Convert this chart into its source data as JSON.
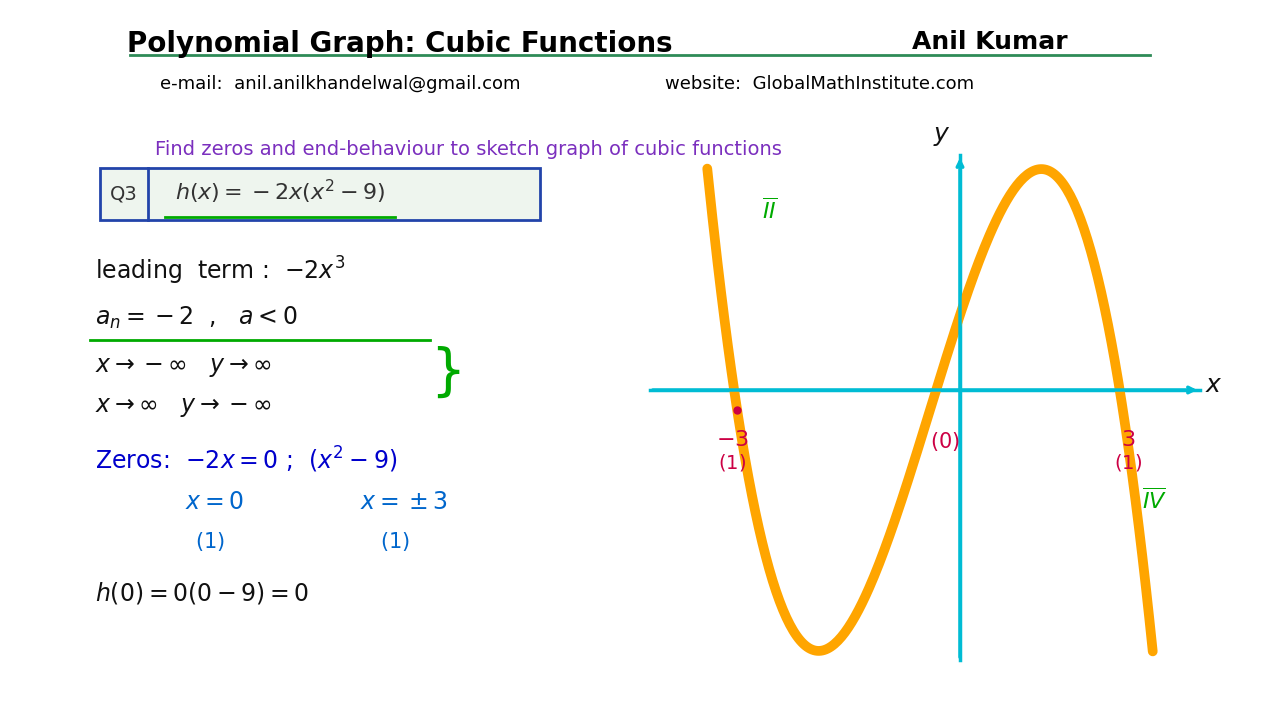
{
  "title": "Polynomial Graph: Cubic Functions",
  "author": "Anil Kumar",
  "email": "e-mail:  anil.anilkhandelwal@gmail.com",
  "website": "website:  GlobalMathInstitute.com",
  "subtitle": "Find zeros and end-behaviour to sketch graph of cubic functions",
  "bg_color": "#f0f0f0",
  "header_line_color": "#2e8b57",
  "title_color": "#000000",
  "subtitle_color": "#7b2fbe",
  "axis_color": "#00bcd4",
  "curve_color": "#FFA500",
  "arrow_up_color": "#00cc00",
  "label_color": "#cc0066",
  "zeros_color": "#0000cc",
  "quadrant_II_color": "#00aa00",
  "quadrant_IV_color": "#00aa00",
  "text_color": "#000000"
}
